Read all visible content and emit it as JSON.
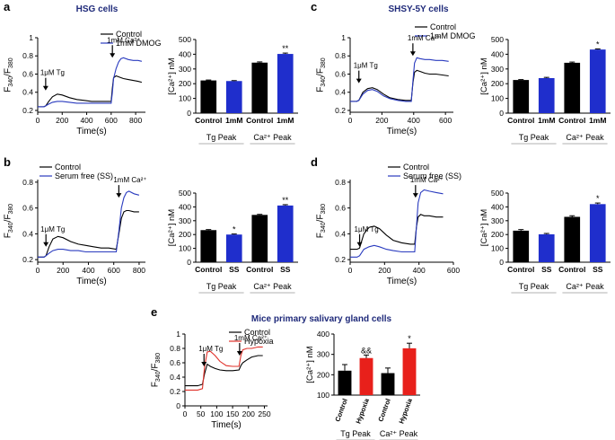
{
  "chart_data": [
    {
      "id": "a",
      "type": "figure_panel",
      "panel_label": "a",
      "title": "HSG cells",
      "line_chart": {
        "type": "line",
        "xlabel": "Time(s)",
        "ylabel": "F340/F380",
        "xlim": [
          0,
          880
        ],
        "ylim": [
          0.18,
          1.0
        ],
        "xticks": [
          0,
          200,
          400,
          600,
          800
        ],
        "yticks": [
          0.2,
          0.4,
          0.6,
          0.8,
          1.0
        ],
        "annotations": [
          {
            "text": "1μM Tg",
            "x": 65,
            "y": 0.42
          },
          {
            "text": "1mM Ca²⁺",
            "x": 610,
            "y": 0.78
          }
        ],
        "series": [
          {
            "name": "Control",
            "color": "#000000",
            "x": [
              0,
              50,
              65,
              90,
              120,
              160,
              200,
              260,
              320,
              380,
              440,
              500,
              560,
              600,
              610,
              620,
              640,
              660,
              680,
              700,
              740,
              780,
              820,
              850
            ],
            "y": [
              0.24,
              0.24,
              0.25,
              0.3,
              0.35,
              0.38,
              0.37,
              0.34,
              0.32,
              0.31,
              0.3,
              0.3,
              0.3,
              0.3,
              0.45,
              0.56,
              0.58,
              0.57,
              0.56,
              0.55,
              0.54,
              0.53,
              0.52,
              0.51
            ]
          },
          {
            "name": "1mM DMOG",
            "color": "#2a3bbf",
            "x": [
              0,
              50,
              65,
              90,
              120,
              160,
              200,
              260,
              320,
              380,
              440,
              500,
              560,
              600,
              610,
              620,
              640,
              660,
              680,
              700,
              740,
              780,
              820,
              850
            ],
            "y": [
              0.24,
              0.24,
              0.25,
              0.27,
              0.29,
              0.3,
              0.3,
              0.29,
              0.28,
              0.28,
              0.28,
              0.28,
              0.28,
              0.28,
              0.4,
              0.55,
              0.66,
              0.73,
              0.77,
              0.78,
              0.76,
              0.75,
              0.75,
              0.74
            ]
          }
        ]
      },
      "bar_chart": {
        "type": "bar",
        "ylabel": "[Ca²⁺] nM",
        "ylim": [
          0,
          500
        ],
        "yticks": [
          0,
          100,
          200,
          300,
          400,
          500
        ],
        "categories": [
          "Control",
          "1mM",
          "Control",
          "1mM"
        ],
        "values": [
          222,
          218,
          343,
          402
        ],
        "errors": [
          3,
          3,
          5,
          6
        ],
        "colors": [
          "#000000",
          "#1f2ecc",
          "#000000",
          "#1f2ecc"
        ],
        "significance": [
          "",
          "",
          "",
          "**"
        ],
        "groups": [
          {
            "label": "Tg Peak",
            "span": [
              0,
              1
            ]
          },
          {
            "label": "Ca²⁺ Peak",
            "span": [
              2,
              3
            ]
          }
        ]
      }
    },
    {
      "id": "c",
      "type": "figure_panel",
      "panel_label": "c",
      "title": "SHSY-5Y cells",
      "line_chart": {
        "type": "line",
        "xlabel": "Time(s)",
        "ylabel": "F340/F380",
        "xlim": [
          0,
          650
        ],
        "ylim": [
          0.18,
          1.0
        ],
        "xticks": [
          0,
          200,
          400,
          600
        ],
        "yticks": [
          0.2,
          0.4,
          0.6,
          0.8,
          1.0
        ],
        "annotations": [
          {
            "text": "1μM Tg",
            "x": 55,
            "y": 0.5
          },
          {
            "text": "1mM Ca²⁺",
            "x": 395,
            "y": 0.8
          }
        ],
        "series": [
          {
            "name": "Control",
            "color": "#000000",
            "x": [
              0,
              40,
              55,
              80,
              110,
              140,
              170,
              210,
              250,
              300,
              350,
              385,
              395,
              405,
              420,
              440,
              470,
              500,
              540,
              580,
              620
            ],
            "y": [
              0.3,
              0.3,
              0.31,
              0.4,
              0.44,
              0.45,
              0.43,
              0.38,
              0.34,
              0.32,
              0.31,
              0.31,
              0.5,
              0.62,
              0.64,
              0.63,
              0.61,
              0.6,
              0.6,
              0.59,
              0.58
            ]
          },
          {
            "name": "1mM DMOG",
            "color": "#2a3bbf",
            "x": [
              0,
              40,
              55,
              80,
              110,
              140,
              170,
              210,
              250,
              300,
              350,
              385,
              395,
              405,
              420,
              440,
              470,
              500,
              540,
              580,
              620
            ],
            "y": [
              0.3,
              0.3,
              0.31,
              0.38,
              0.42,
              0.43,
              0.41,
              0.36,
              0.33,
              0.31,
              0.3,
              0.3,
              0.52,
              0.72,
              0.78,
              0.77,
              0.76,
              0.76,
              0.75,
              0.75,
              0.74
            ]
          }
        ]
      },
      "bar_chart": {
        "type": "bar",
        "ylabel": "[Ca²⁺] nM",
        "ylim": [
          0,
          500
        ],
        "yticks": [
          0,
          100,
          200,
          300,
          400,
          500
        ],
        "categories": [
          "Control",
          "1mM",
          "Control",
          "1mM"
        ],
        "values": [
          225,
          238,
          342,
          432
        ],
        "errors": [
          3,
          5,
          5,
          4
        ],
        "colors": [
          "#000000",
          "#1f2ecc",
          "#000000",
          "#1f2ecc"
        ],
        "significance": [
          "",
          "",
          "",
          "*"
        ],
        "groups": [
          {
            "label": "Tg Peak",
            "span": [
              0,
              1
            ]
          },
          {
            "label": "Ca²⁺ Peak",
            "span": [
              2,
              3
            ]
          }
        ]
      }
    },
    {
      "id": "b",
      "type": "figure_panel",
      "panel_label": "b",
      "title": "",
      "line_chart": {
        "type": "line",
        "xlabel": "Time(s)",
        "ylabel": "F340/F380",
        "xlim": [
          0,
          850
        ],
        "ylim": [
          0.18,
          0.82
        ],
        "xticks": [
          0,
          200,
          400,
          600,
          800
        ],
        "yticks": [
          0.2,
          0.4,
          0.6,
          0.8
        ],
        "annotations": [
          {
            "text": "1μM Tg",
            "x": 65,
            "y": 0.3
          },
          {
            "text": "1mM Ca²⁺",
            "x": 640,
            "y": 0.68
          }
        ],
        "series": [
          {
            "name": "Control",
            "color": "#000000",
            "x": [
              0,
              50,
              65,
              90,
              120,
              160,
              200,
              260,
              320,
              380,
              440,
              500,
              560,
              620,
              640,
              660,
              680,
              700,
              720,
              760,
              800
            ],
            "y": [
              0.22,
              0.22,
              0.23,
              0.3,
              0.36,
              0.38,
              0.37,
              0.34,
              0.32,
              0.31,
              0.3,
              0.29,
              0.29,
              0.28,
              0.4,
              0.52,
              0.57,
              0.58,
              0.58,
              0.57,
              0.57
            ]
          },
          {
            "name": "Serum free (SS)",
            "color": "#2a3bbf",
            "x": [
              0,
              50,
              65,
              90,
              120,
              160,
              200,
              260,
              320,
              380,
              440,
              500,
              560,
              620,
              640,
              660,
              680,
              700,
              720,
              760,
              800
            ],
            "y": [
              0.22,
              0.22,
              0.23,
              0.25,
              0.27,
              0.28,
              0.28,
              0.27,
              0.27,
              0.26,
              0.26,
              0.26,
              0.26,
              0.26,
              0.42,
              0.6,
              0.68,
              0.72,
              0.73,
              0.71,
              0.7
            ]
          }
        ]
      },
      "bar_chart": {
        "type": "bar",
        "ylabel": "[Ca²⁺] nM",
        "ylim": [
          0,
          500
        ],
        "yticks": [
          0,
          100,
          200,
          300,
          400,
          500
        ],
        "categories": [
          "Control",
          "SS",
          "Control",
          "SS"
        ],
        "values": [
          232,
          200,
          342,
          410
        ],
        "errors": [
          4,
          4,
          4,
          6
        ],
        "colors": [
          "#000000",
          "#1f2ecc",
          "#000000",
          "#1f2ecc"
        ],
        "significance": [
          "",
          "*",
          "",
          "**"
        ],
        "groups": [
          {
            "label": "Tg Peak",
            "span": [
              0,
              1
            ]
          },
          {
            "label": "Ca²⁺ Peak",
            "span": [
              2,
              3
            ]
          }
        ]
      }
    },
    {
      "id": "d",
      "type": "figure_panel",
      "panel_label": "d",
      "title": "",
      "line_chart": {
        "type": "line",
        "xlabel": "Time(s)",
        "ylabel": "F340/F380",
        "xlim": [
          0,
          600
        ],
        "ylim": [
          0.18,
          0.82
        ],
        "xticks": [
          0,
          200,
          400,
          600
        ],
        "yticks": [
          0.2,
          0.4,
          0.6,
          0.8
        ],
        "annotations": [
          {
            "text": "1μM Tg",
            "x": 55,
            "y": 0.3
          },
          {
            "text": "1mM Ca²⁺",
            "x": 380,
            "y": 0.68
          }
        ],
        "series": [
          {
            "name": "Control",
            "color": "#000000",
            "x": [
              0,
              40,
              55,
              80,
              110,
              140,
              170,
              210,
              250,
              300,
              350,
              375,
              385,
              395,
              410,
              430,
              460,
              500,
              540
            ],
            "y": [
              0.28,
              0.28,
              0.29,
              0.4,
              0.45,
              0.46,
              0.44,
              0.39,
              0.35,
              0.33,
              0.32,
              0.32,
              0.45,
              0.53,
              0.55,
              0.54,
              0.54,
              0.53,
              0.53
            ]
          },
          {
            "name": "Serum free (SS)",
            "color": "#2a3bbf",
            "x": [
              0,
              40,
              55,
              80,
              110,
              140,
              170,
              210,
              250,
              300,
              350,
              375,
              385,
              395,
              410,
              430,
              460,
              500,
              540
            ],
            "y": [
              0.22,
              0.22,
              0.23,
              0.28,
              0.3,
              0.31,
              0.3,
              0.28,
              0.27,
              0.26,
              0.26,
              0.26,
              0.45,
              0.64,
              0.72,
              0.74,
              0.73,
              0.72,
              0.71
            ]
          }
        ]
      },
      "bar_chart": {
        "type": "bar",
        "ylabel": "[Ca²⁺] nM",
        "ylim": [
          0,
          500
        ],
        "yticks": [
          0,
          100,
          200,
          300,
          400,
          500
        ],
        "categories": [
          "Control",
          "SS",
          "Control",
          "SS"
        ],
        "values": [
          228,
          202,
          328,
          420
        ],
        "errors": [
          8,
          6,
          8,
          8
        ],
        "colors": [
          "#000000",
          "#1f2ecc",
          "#000000",
          "#1f2ecc"
        ],
        "significance": [
          "",
          "",
          "",
          "*"
        ],
        "groups": [
          {
            "label": "Tg Peak",
            "span": [
              0,
              1
            ]
          },
          {
            "label": "Ca²⁺ Peak",
            "span": [
              2,
              3
            ]
          }
        ]
      }
    },
    {
      "id": "e",
      "type": "figure_panel",
      "panel_label": "e",
      "title": "Mice primary salivary gland cells",
      "line_chart": {
        "type": "line",
        "xlabel": "Time(s)",
        "ylabel": "F340/F380",
        "xlim": [
          0,
          260
        ],
        "ylim": [
          0.0,
          1.0
        ],
        "xticks": [
          0,
          50,
          100,
          150,
          200,
          250
        ],
        "yticks": [
          0.0,
          0.2,
          0.4,
          0.6,
          0.8,
          1.0
        ],
        "annotations": [
          {
            "text": "1μM Tg",
            "x": 60,
            "y": 0.55
          },
          {
            "text": "1mM Ca²⁺",
            "x": 172,
            "y": 0.7
          }
        ],
        "series": [
          {
            "name": "Control",
            "color": "#000000",
            "x": [
              0,
              20,
              40,
              55,
              62,
              70,
              80,
              95,
              110,
              130,
              150,
              170,
              176,
              182,
              195,
              210,
              230,
              245
            ],
            "y": [
              0.28,
              0.28,
              0.28,
              0.3,
              0.45,
              0.58,
              0.55,
              0.52,
              0.5,
              0.49,
              0.49,
              0.5,
              0.56,
              0.6,
              0.64,
              0.68,
              0.7,
              0.7
            ]
          },
          {
            "name": "Hypoxia",
            "color": "#e0312a",
            "x": [
              0,
              20,
              40,
              55,
              62,
              70,
              80,
              95,
              110,
              130,
              150,
              170,
              176,
              182,
              195,
              210,
              230,
              245
            ],
            "y": [
              0.22,
              0.22,
              0.22,
              0.24,
              0.55,
              0.75,
              0.76,
              0.7,
              0.62,
              0.56,
              0.55,
              0.55,
              0.7,
              0.78,
              0.8,
              0.8,
              0.82,
              0.82
            ]
          }
        ]
      },
      "bar_chart": {
        "type": "bar",
        "ylabel": "[Ca²⁺] nM",
        "ylim": [
          100,
          400
        ],
        "yticks": [
          100,
          200,
          300,
          400
        ],
        "categories": [
          "Control",
          "Hypoxia",
          "Control",
          "Hypoxia"
        ],
        "values": [
          220,
          282,
          208,
          330
        ],
        "errors": [
          30,
          15,
          25,
          25
        ],
        "colors": [
          "#000000",
          "#e8201b",
          "#000000",
          "#e8201b"
        ],
        "significance": [
          "",
          "&&",
          "",
          "*"
        ],
        "groups": [
          {
            "label": "Tg Peak",
            "span": [
              0,
              1
            ]
          },
          {
            "label": "Ca²⁺ Peak",
            "span": [
              2,
              3
            ]
          }
        ]
      }
    }
  ]
}
